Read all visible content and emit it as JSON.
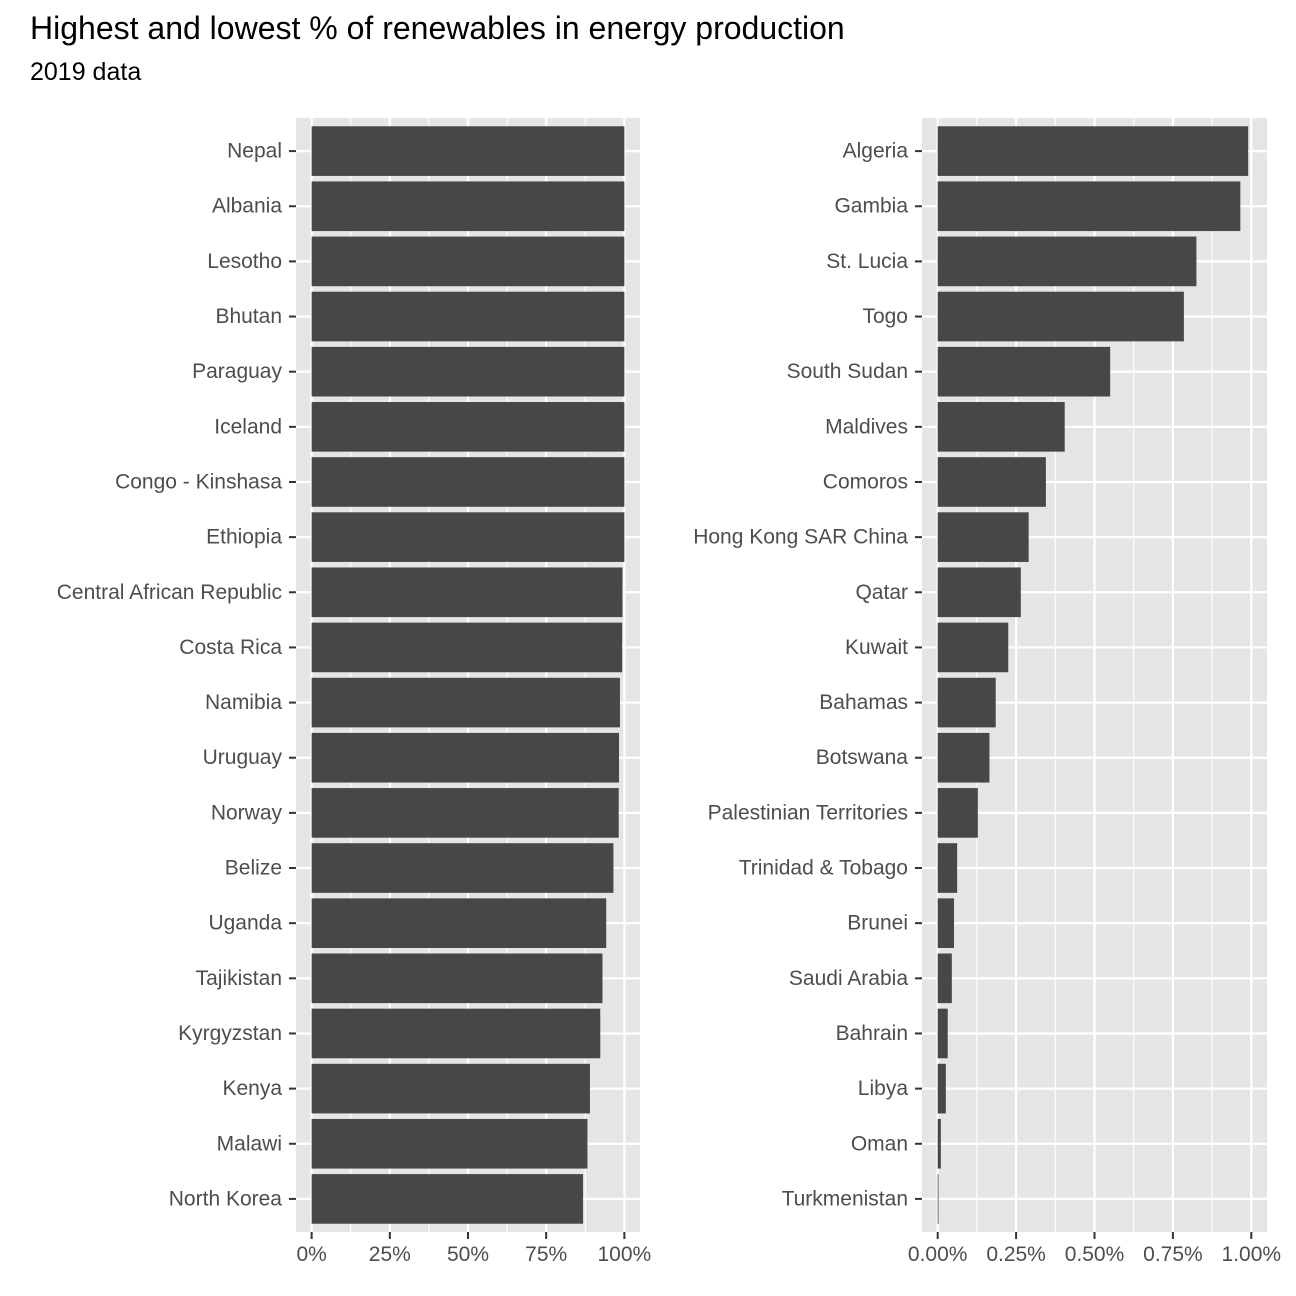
{
  "title": "Highest and lowest % of renewables in energy production",
  "subtitle": "2019 data",
  "colors": {
    "panel_bg": "#e5e5e5",
    "grid": "#ffffff",
    "bar": "#474747",
    "tick": "#333333",
    "label": "#4d4d4d"
  },
  "chart_data": [
    {
      "type": "bar",
      "orientation": "horizontal",
      "categories": [
        "Nepal",
        "Albania",
        "Lesotho",
        "Bhutan",
        "Paraguay",
        "Iceland",
        "Congo - Kinshasa",
        "Ethiopia",
        "Central African Republic",
        "Costa Rica",
        "Namibia",
        "Uruguay",
        "Norway",
        "Belize",
        "Uganda",
        "Tajikistan",
        "Kyrgyzstan",
        "Kenya",
        "Malawi",
        "North Korea"
      ],
      "values": [
        100,
        100,
        100,
        100,
        100,
        100,
        100,
        100,
        99.4,
        99.3,
        98.6,
        98.3,
        98.2,
        96.5,
        94.2,
        93,
        92.3,
        89,
        88.2,
        86.8
      ],
      "unit": "%",
      "xlim": [
        0,
        100
      ],
      "x_ticks": [
        0,
        25,
        50,
        75,
        100
      ],
      "x_tick_labels": [
        "0%",
        "25%",
        "50%",
        "75%",
        "100%"
      ],
      "grid": true
    },
    {
      "type": "bar",
      "orientation": "horizontal",
      "categories": [
        "Algeria",
        "Gambia",
        "St. Lucia",
        "Togo",
        "South Sudan",
        "Maldives",
        "Comoros",
        "Hong Kong SAR China",
        "Qatar",
        "Kuwait",
        "Bahamas",
        "Botswana",
        "Palestinian Territories",
        "Trinidad & Tobago",
        "Brunei",
        "Saudi Arabia",
        "Bahrain",
        "Libya",
        "Oman",
        "Turkmenistan"
      ],
      "values": [
        0.99,
        0.965,
        0.825,
        0.785,
        0.55,
        0.405,
        0.345,
        0.29,
        0.265,
        0.225,
        0.185,
        0.165,
        0.128,
        0.062,
        0.052,
        0.045,
        0.032,
        0.026,
        0.01,
        0.002
      ],
      "unit": "%",
      "xlim": [
        0,
        1
      ],
      "x_ticks": [
        0,
        0.25,
        0.5,
        0.75,
        1
      ],
      "x_tick_labels": [
        "0.00%",
        "0.25%",
        "0.50%",
        "0.75%",
        "1.00%"
      ],
      "grid": true
    }
  ]
}
